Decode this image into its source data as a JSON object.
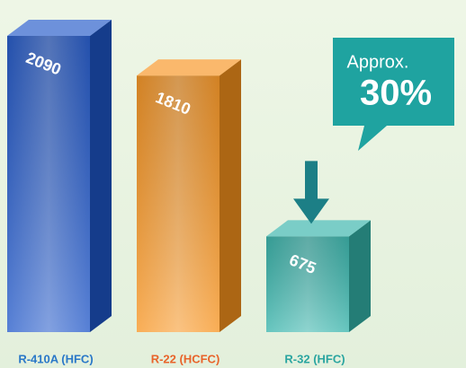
{
  "chart_data": {
    "type": "bar",
    "categories": [
      "R-410A (HFC)",
      "R-22 (HCFC)",
      "R-32 (HFC)"
    ],
    "values": [
      2090,
      1810,
      675
    ],
    "colors": [
      "#1f56c8",
      "#f7931e",
      "#34b3aa"
    ],
    "label_colors": [
      "#2a78c8",
      "#e8642a",
      "#2aa5a0"
    ],
    "callout": {
      "line1": "Approx.",
      "line2": "30%"
    }
  }
}
